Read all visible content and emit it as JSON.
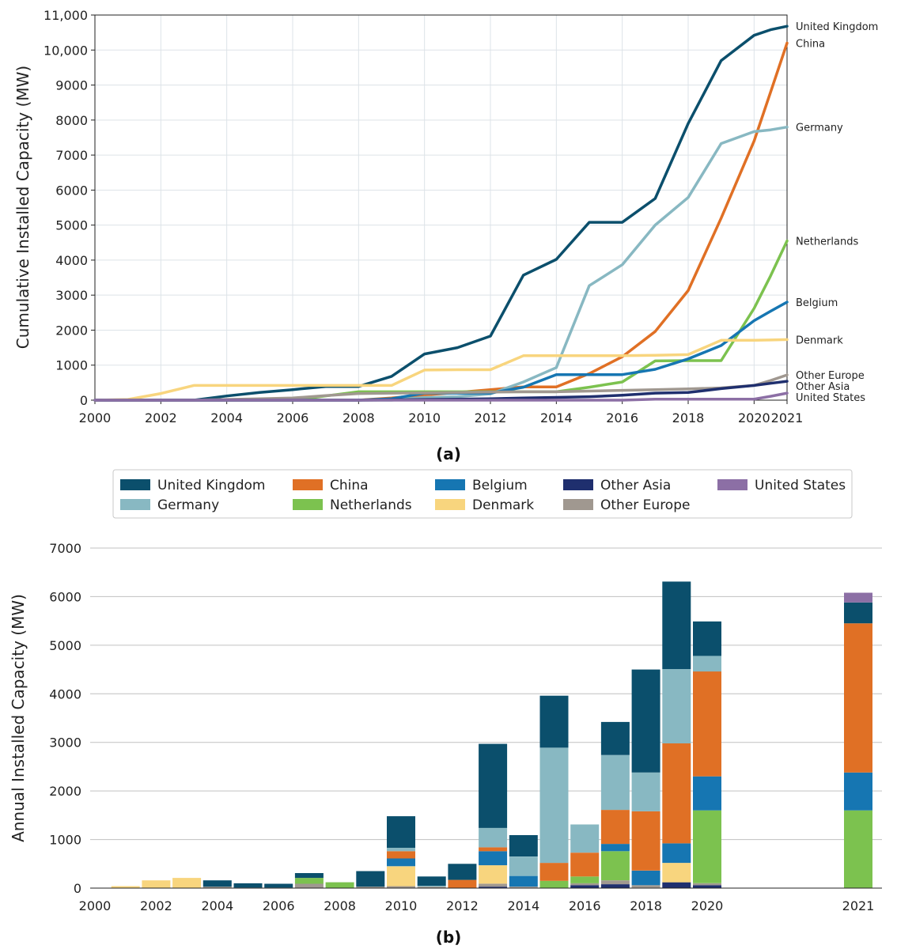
{
  "chart_data": [
    {
      "type": "line",
      "panel_label": "(a)",
      "ylabel": "Cumulative Installed Capacity (MW)",
      "xlabel": "",
      "xlim": [
        2000,
        2021
      ],
      "ylim": [
        0,
        11000
      ],
      "xticks": [
        "2000",
        "2002",
        "2004",
        "2006",
        "2008",
        "2010",
        "2012",
        "2014",
        "2016",
        "2018",
        "2020",
        "2021"
      ],
      "yticks": [
        "0",
        "1000",
        "2000",
        "3000",
        "4000",
        "5000",
        "6000",
        "7000",
        "8000",
        "9000",
        "10,000",
        "11,000"
      ],
      "grid": true,
      "x": [
        2000,
        2001,
        2002,
        2003,
        2004,
        2005,
        2006,
        2007,
        2008,
        2009,
        2010,
        2011,
        2012,
        2013,
        2014,
        2015,
        2016,
        2017,
        2018,
        2019,
        2020,
        2020.5,
        2021
      ],
      "series": [
        {
          "name": "United Kingdom",
          "color": "#0b4f6c",
          "values": [
            0,
            0,
            0,
            0,
            120,
            220,
            300,
            390,
            390,
            680,
            1320,
            1500,
            1830,
            3570,
            4020,
            5080,
            5080,
            5760,
            7900,
            9700,
            10420,
            10580,
            10680
          ]
        },
        {
          "name": "China",
          "color": "#e07025",
          "values": [
            0,
            0,
            0,
            0,
            0,
            0,
            0,
            0,
            0,
            60,
            150,
            220,
            300,
            380,
            380,
            760,
            1240,
            1960,
            3130,
            5200,
            7400,
            8800,
            10200
          ]
        },
        {
          "name": "Germany",
          "color": "#88b8c2",
          "values": [
            0,
            0,
            0,
            0,
            0,
            0,
            0,
            0,
            0,
            0,
            80,
            100,
            180,
            520,
            930,
            3270,
            3870,
            5000,
            5790,
            7330,
            7670,
            7720,
            7800
          ]
        },
        {
          "name": "Netherlands",
          "color": "#7cc24f",
          "values": [
            0,
            0,
            0,
            0,
            0,
            0,
            0,
            120,
            240,
            240,
            240,
            240,
            240,
            240,
            240,
            370,
            520,
            1120,
            1130,
            1130,
            2620,
            3550,
            4550
          ]
        },
        {
          "name": "Belgium",
          "color": "#1676b2",
          "values": [
            0,
            0,
            0,
            0,
            0,
            0,
            0,
            0,
            0,
            40,
            200,
            200,
            200,
            370,
            730,
            730,
            730,
            880,
            1180,
            1560,
            2270,
            2540,
            2800
          ]
        },
        {
          "name": "Denmark",
          "color": "#f8d57e",
          "values": [
            0,
            20,
            190,
            420,
            420,
            420,
            420,
            420,
            420,
            420,
            860,
            870,
            870,
            1270,
            1270,
            1270,
            1270,
            1280,
            1300,
            1710,
            1710,
            1720,
            1730
          ]
        },
        {
          "name": "Other Europe",
          "color": "#a09890",
          "values": [
            0,
            0,
            0,
            0,
            20,
            40,
            60,
            130,
            190,
            200,
            210,
            220,
            230,
            240,
            240,
            260,
            280,
            300,
            320,
            350,
            420,
            560,
            720
          ]
        },
        {
          "name": "Other Asia",
          "color": "#1f2f6e",
          "values": [
            0,
            0,
            0,
            0,
            0,
            0,
            0,
            0,
            0,
            10,
            20,
            30,
            40,
            60,
            80,
            100,
            140,
            200,
            220,
            330,
            420,
            480,
            540
          ]
        },
        {
          "name": "United States",
          "color": "#8c6fa5",
          "values": [
            0,
            0,
            0,
            0,
            0,
            0,
            0,
            0,
            0,
            0,
            0,
            0,
            0,
            0,
            0,
            0,
            0,
            30,
            30,
            30,
            30,
            110,
            200
          ]
        }
      ],
      "end_labels": [
        "United Kingdom",
        "China",
        "Germany",
        "Netherlands",
        "Belgium",
        "Denmark",
        "Other Europe",
        "Other Asia",
        "United States"
      ]
    },
    {
      "type": "bar",
      "stacked": true,
      "panel_label": "(b)",
      "ylabel": "Annual Installed Capacity (MW)",
      "xlabel": "",
      "ylim": [
        0,
        7000
      ],
      "yticks": [
        "0",
        "1000",
        "2000",
        "3000",
        "4000",
        "5000",
        "6000",
        "7000"
      ],
      "xticks": [
        "2000",
        "2002",
        "2004",
        "2006",
        "2008",
        "2010",
        "2012",
        "2014",
        "2016",
        "2018",
        "2020",
        "2021"
      ],
      "grid": true,
      "categories": [
        "2001",
        "2002",
        "2003",
        "2004",
        "2005",
        "2006",
        "2007",
        "2008",
        "2009",
        "2010",
        "2011",
        "2012",
        "2013",
        "2014",
        "2015",
        "2016",
        "2017",
        "2018",
        "2019",
        "2020",
        "2021"
      ],
      "series": [
        {
          "name": "Other Asia",
          "color": "#1f2f6e",
          "values": [
            0,
            0,
            0,
            0,
            0,
            0,
            0,
            0,
            0,
            0,
            0,
            0,
            30,
            10,
            0,
            60,
            80,
            10,
            120,
            60,
            0
          ]
        },
        {
          "name": "Other Europe",
          "color": "#a09890",
          "values": [
            0,
            0,
            0,
            30,
            10,
            10,
            90,
            0,
            30,
            40,
            30,
            0,
            60,
            20,
            0,
            40,
            80,
            50,
            0,
            40,
            0
          ]
        },
        {
          "name": "Denmark",
          "color": "#f8d57e",
          "values": [
            40,
            160,
            210,
            0,
            0,
            0,
            0,
            0,
            0,
            410,
            0,
            0,
            380,
            0,
            0,
            0,
            0,
            0,
            400,
            0,
            0
          ]
        },
        {
          "name": "Netherlands",
          "color": "#7cc24f",
          "values": [
            0,
            0,
            0,
            0,
            0,
            0,
            120,
            120,
            0,
            0,
            0,
            0,
            0,
            0,
            150,
            140,
            600,
            0,
            0,
            1500,
            1600
          ]
        },
        {
          "name": "Belgium",
          "color": "#1676b2",
          "values": [
            0,
            0,
            0,
            0,
            0,
            0,
            0,
            0,
            0,
            160,
            0,
            0,
            290,
            220,
            0,
            0,
            150,
            300,
            400,
            700,
            780
          ]
        },
        {
          "name": "China",
          "color": "#e07025",
          "values": [
            0,
            0,
            0,
            0,
            0,
            0,
            0,
            0,
            0,
            150,
            0,
            170,
            80,
            0,
            370,
            490,
            700,
            1220,
            2060,
            2160,
            3070
          ]
        },
        {
          "name": "Germany",
          "color": "#88b8c2",
          "values": [
            0,
            0,
            0,
            0,
            0,
            0,
            0,
            0,
            0,
            70,
            20,
            0,
            400,
            400,
            2370,
            580,
            1130,
            800,
            1530,
            320,
            0
          ]
        },
        {
          "name": "United Kingdom",
          "color": "#0b4f6c",
          "values": [
            0,
            0,
            0,
            130,
            90,
            80,
            100,
            0,
            320,
            650,
            190,
            330,
            1730,
            440,
            1070,
            0,
            680,
            2120,
            1800,
            710,
            430
          ]
        },
        {
          "name": "United States",
          "color": "#8c6fa5",
          "values": [
            0,
            0,
            0,
            0,
            0,
            0,
            0,
            0,
            0,
            0,
            0,
            0,
            0,
            0,
            0,
            0,
            0,
            0,
            0,
            0,
            200
          ]
        }
      ]
    }
  ],
  "legend": {
    "entries": [
      {
        "name": "United Kingdom",
        "color": "#0b4f6c"
      },
      {
        "name": "China",
        "color": "#e07025"
      },
      {
        "name": "Belgium",
        "color": "#1676b2"
      },
      {
        "name": "Other Asia",
        "color": "#1f2f6e"
      },
      {
        "name": "United States",
        "color": "#8c6fa5"
      },
      {
        "name": "Germany",
        "color": "#88b8c2"
      },
      {
        "name": "Netherlands",
        "color": "#7cc24f"
      },
      {
        "name": "Denmark",
        "color": "#f8d57e"
      },
      {
        "name": "Other Europe",
        "color": "#a09890"
      }
    ]
  },
  "colors": {
    "grid": "#dde3e8",
    "grid_b": "#c0c0c0",
    "axis": "#222222"
  }
}
